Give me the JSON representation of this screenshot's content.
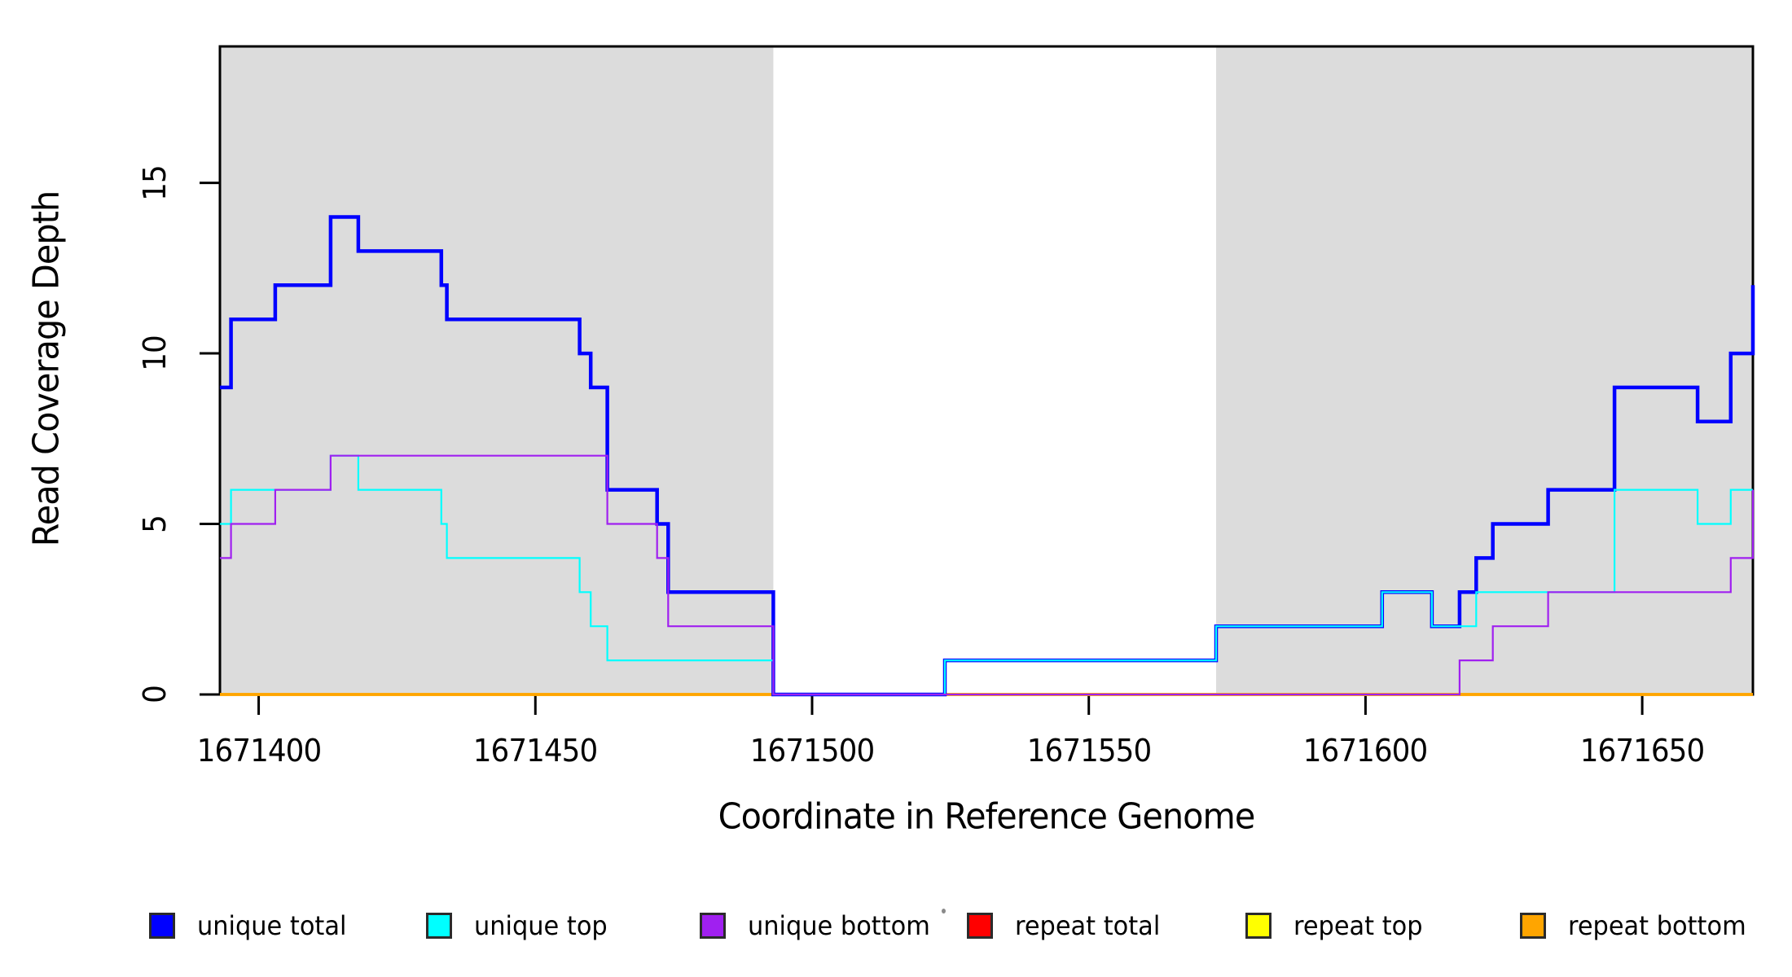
{
  "chart_data": {
    "type": "line",
    "step_mode": "step-after",
    "title": "",
    "xlabel": "Coordinate in Reference Genome",
    "ylabel": "Read Coverage Depth",
    "xlim": [
      1671393,
      1671670
    ],
    "ylim": [
      0,
      19
    ],
    "grid": false,
    "background": "#FFFFFF",
    "axis_color": "#000000",
    "legend_position": "bottom",
    "x_ticks": [
      {
        "value": 1671400,
        "label": "1671400"
      },
      {
        "value": 1671450,
        "label": "1671450"
      },
      {
        "value": 1671500,
        "label": "1671500"
      },
      {
        "value": 1671550,
        "label": "1671550"
      },
      {
        "value": 1671600,
        "label": "1671600"
      },
      {
        "value": 1671650,
        "label": "1671650"
      }
    ],
    "y_ticks": [
      {
        "value": 0,
        "label": "0"
      },
      {
        "value": 5,
        "label": "5"
      },
      {
        "value": 10,
        "label": "10"
      },
      {
        "value": 15,
        "label": "15"
      }
    ],
    "shaded_regions": [
      {
        "x0": 1671393,
        "x1": 1671493,
        "color": "#DCDCDC"
      },
      {
        "x0": 1671573,
        "x1": 1671670,
        "color": "#DCDCDC"
      }
    ],
    "series": [
      {
        "name": "repeat total",
        "color": "#FF0000",
        "width": 3.5,
        "points": [
          [
            1671393,
            0
          ],
          [
            1671670,
            0
          ]
        ]
      },
      {
        "name": "repeat top",
        "color": "#FFFF00",
        "width": 3.5,
        "points": [
          [
            1671393,
            0
          ],
          [
            1671670,
            0
          ]
        ]
      },
      {
        "name": "repeat bottom",
        "color": "#FFA500",
        "width": 3.5,
        "points": [
          [
            1671393,
            0
          ],
          [
            1671670,
            0
          ]
        ]
      },
      {
        "name": "unique total",
        "color": "#0000FF",
        "width": 4.5,
        "points": [
          [
            1671393,
            9
          ],
          [
            1671395,
            11
          ],
          [
            1671403,
            12
          ],
          [
            1671413,
            14
          ],
          [
            1671418,
            13
          ],
          [
            1671433,
            12
          ],
          [
            1671434,
            11
          ],
          [
            1671458,
            10
          ],
          [
            1671460,
            9
          ],
          [
            1671463,
            6
          ],
          [
            1671472,
            5
          ],
          [
            1671474,
            3
          ],
          [
            1671493,
            0
          ],
          [
            1671524,
            1
          ],
          [
            1671573,
            2
          ],
          [
            1671603,
            3
          ],
          [
            1671612,
            2
          ],
          [
            1671617,
            3
          ],
          [
            1671620,
            4
          ],
          [
            1671623,
            5
          ],
          [
            1671633,
            6
          ],
          [
            1671645,
            9
          ],
          [
            1671660,
            8
          ],
          [
            1671666,
            10
          ],
          [
            1671670,
            12
          ]
        ]
      },
      {
        "name": "unique top",
        "color": "#00FFFF",
        "width": 2.2,
        "points": [
          [
            1671393,
            5
          ],
          [
            1671395,
            6
          ],
          [
            1671413,
            7
          ],
          [
            1671418,
            6
          ],
          [
            1671433,
            5
          ],
          [
            1671434,
            4
          ],
          [
            1671458,
            3
          ],
          [
            1671460,
            2
          ],
          [
            1671463,
            1
          ],
          [
            1671493,
            0
          ],
          [
            1671524,
            1
          ],
          [
            1671573,
            2
          ],
          [
            1671603,
            3
          ],
          [
            1671612,
            2
          ],
          [
            1671620,
            3
          ],
          [
            1671645,
            6
          ],
          [
            1671660,
            5
          ],
          [
            1671666,
            6
          ],
          [
            1671670,
            6
          ]
        ]
      },
      {
        "name": "unique bottom",
        "color": "#A020F0",
        "width": 2.2,
        "points": [
          [
            1671393,
            4
          ],
          [
            1671395,
            5
          ],
          [
            1671403,
            6
          ],
          [
            1671413,
            7
          ],
          [
            1671463,
            5
          ],
          [
            1671472,
            4
          ],
          [
            1671474,
            2
          ],
          [
            1671493,
            0
          ],
          [
            1671617,
            1
          ],
          [
            1671623,
            2
          ],
          [
            1671633,
            3
          ],
          [
            1671666,
            4
          ],
          [
            1671670,
            6
          ]
        ]
      }
    ]
  },
  "legend": {
    "items": [
      {
        "label": "unique total",
        "color": "#0000FF"
      },
      {
        "label": "unique top",
        "color": "#00FFFF"
      },
      {
        "label": "unique bottom",
        "color": "#A020F0"
      },
      {
        "label": "repeat total",
        "color": "#FF0000"
      },
      {
        "label": "repeat top",
        "color": "#FFFF00"
      },
      {
        "label": "repeat bottom",
        "color": "#FFA500"
      }
    ]
  }
}
